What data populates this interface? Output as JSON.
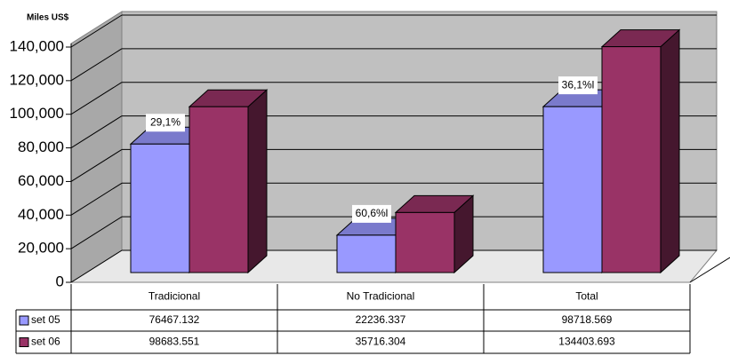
{
  "chart_data": {
    "type": "bar3d",
    "y_axis_label": "Miles US$",
    "categories": [
      "Tradicional",
      "No Tradicional",
      "Total"
    ],
    "series": [
      {
        "name": "set 05",
        "color": "#9999ff",
        "values": [
          76467.132,
          22236.337,
          98718.569
        ]
      },
      {
        "name": "set 06",
        "color": "#993366",
        "values": [
          98683.551,
          35716.304,
          134403.693
        ]
      }
    ],
    "annotations": [
      "29,1%",
      "60,6%l",
      "36,1%l"
    ],
    "ylim": [
      0,
      140000
    ],
    "yticks": [
      0,
      {
        "value": 20000,
        "label": "20,000"
      },
      {
        "value": 40000,
        "label": "40,000"
      },
      {
        "value": 60000,
        "label": "60,000"
      },
      {
        "value": 80000,
        "label": "80,000"
      },
      {
        "value": 100000,
        "label": "100,000"
      },
      {
        "value": 120000,
        "label": "120,000"
      },
      {
        "value": 140000,
        "label": "140,000"
      }
    ],
    "grid": true
  }
}
